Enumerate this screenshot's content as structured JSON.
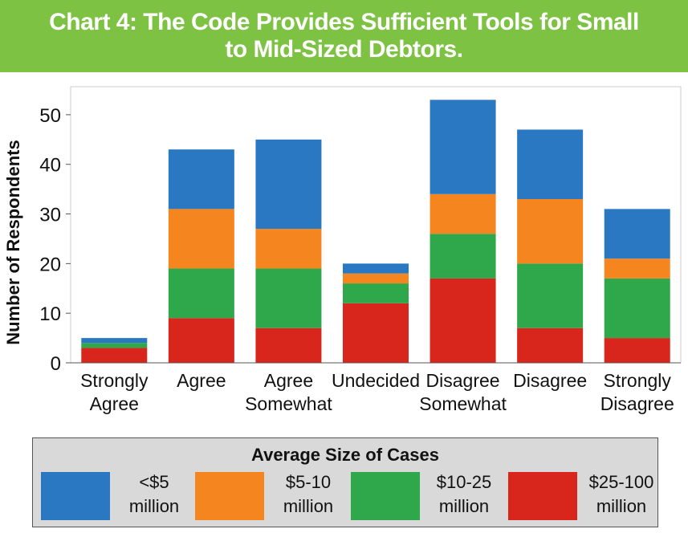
{
  "header": {
    "title_line1": "Chart 4: The Code Provides Sufficient Tools for Small",
    "title_line2": "to Mid-Sized Debtors."
  },
  "legend": {
    "title": "Average Size of Cases",
    "items": [
      {
        "line1": "<$5",
        "line2": "million",
        "color": "#2b78c2"
      },
      {
        "line1": "$5-10",
        "line2": "million",
        "color": "#f5861f"
      },
      {
        "line1": "$10-25",
        "line2": "million",
        "color": "#2ea84a"
      },
      {
        "line1": "$25-100",
        "line2": "million",
        "color": "#d9261c"
      }
    ]
  },
  "chart_data": {
    "type": "bar",
    "stacked": true,
    "title": "Chart 4: The Code Provides Sufficient Tools for Small to Mid-Sized Debtors.",
    "xlabel": "",
    "ylabel": "Number of Respondents",
    "ylim": [
      0,
      55
    ],
    "yticks": [
      0,
      10,
      20,
      30,
      40,
      50
    ],
    "grid": false,
    "legend_position": "bottom",
    "categories": [
      [
        "Strongly",
        "Agree"
      ],
      [
        "Agree"
      ],
      [
        "Agree",
        "Somewhat"
      ],
      [
        "Undecided"
      ],
      [
        "Disagree",
        "Somewhat"
      ],
      [
        "Disagree"
      ],
      [
        "Strongly",
        "Disagree"
      ]
    ],
    "series": [
      {
        "name": "$25-100 million",
        "color": "#d9261c",
        "values": [
          3,
          9,
          7,
          12,
          17,
          7,
          5
        ]
      },
      {
        "name": "$10-25 million",
        "color": "#2ea84a",
        "values": [
          1,
          10,
          12,
          4,
          9,
          13,
          12
        ]
      },
      {
        "name": "$5-10 million",
        "color": "#f5861f",
        "values": [
          0,
          12,
          8,
          2,
          8,
          13,
          4
        ]
      },
      {
        "name": "<$5 million",
        "color": "#2b78c2",
        "values": [
          1,
          12,
          18,
          2,
          19,
          14,
          10
        ]
      }
    ]
  }
}
